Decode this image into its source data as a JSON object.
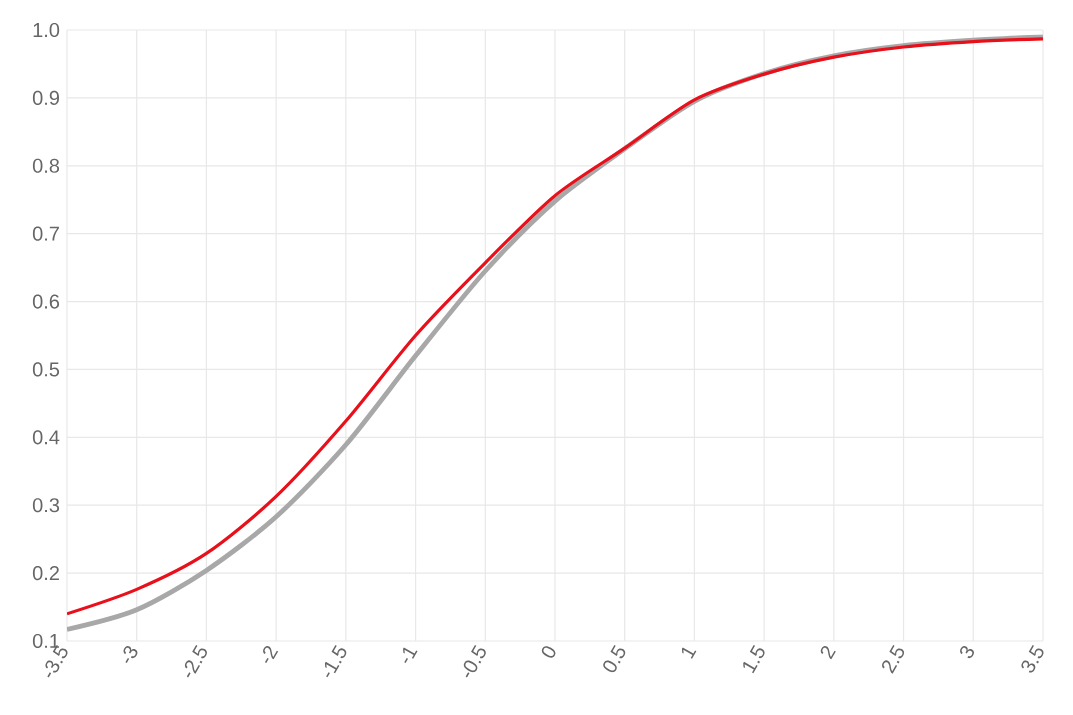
{
  "chart_data": {
    "type": "line",
    "x": [
      -3.5,
      -3,
      -2.5,
      -2,
      -1.5,
      -1,
      -0.5,
      0,
      0.5,
      1,
      1.5,
      2,
      2.5,
      3,
      3.5
    ],
    "series": [
      {
        "color": "#a8a8a8",
        "values": [
          0.117,
          0.146,
          0.204,
          0.283,
          0.389,
          0.52,
          0.645,
          0.748,
          0.825,
          0.895,
          0.936,
          0.962,
          0.977,
          0.985,
          0.99
        ]
      },
      {
        "color": "#e8101a",
        "values": [
          0.14,
          0.176,
          0.229,
          0.313,
          0.424,
          0.55,
          0.657,
          0.756,
          0.826,
          0.897,
          0.935,
          0.96,
          0.975,
          0.983,
          0.987
        ]
      }
    ],
    "xlim": [
      -3.5,
      3.5
    ],
    "ylim": [
      0.1,
      1.0
    ],
    "xticks": [
      -3.5,
      -3,
      -2.5,
      -2,
      -1.5,
      -1,
      -0.5,
      0,
      0.5,
      1,
      1.5,
      2,
      2.5,
      3,
      3.5
    ],
    "yticks": [
      0.1,
      0.2,
      0.3,
      0.4,
      0.5,
      0.6,
      0.7,
      0.8,
      0.9,
      {
        "value": 1.0,
        "label": "1.0"
      }
    ],
    "grid": true,
    "marker": "none",
    "line_style": "solid"
  }
}
